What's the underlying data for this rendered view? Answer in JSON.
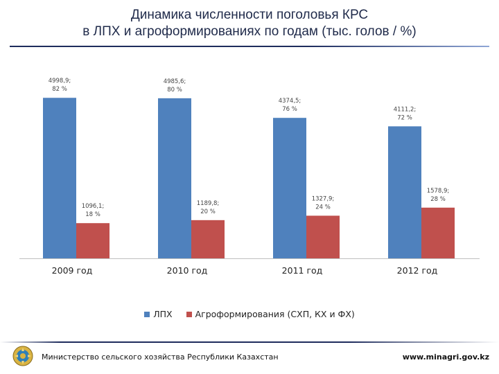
{
  "header": {
    "title_line1": "Динамика численности поголовья КРС",
    "title_line2": "в ЛПХ и агроформированиях по годам (тыс. голов / %)"
  },
  "chart_data": {
    "type": "bar",
    "categories": [
      "2009 год",
      "2010 год",
      "2011 год",
      "2012 год"
    ],
    "ylim": [
      0,
      5500
    ],
    "series": [
      {
        "name": "ЛПХ",
        "color": "#4f81bd",
        "values": [
          4998.9,
          4985.6,
          4374.5,
          4111.2
        ],
        "labels": [
          [
            "4998,9;",
            "82 %"
          ],
          [
            "4985,6;",
            "80 %"
          ],
          [
            "4374,5;",
            "76 %"
          ],
          [
            "4111,2;",
            "72 %"
          ]
        ]
      },
      {
        "name": "Агроформирования (СХП, КХ и ФХ)",
        "color": "#c0504d",
        "values": [
          1096.1,
          1189.8,
          1327.9,
          1578.9
        ],
        "labels": [
          [
            "1096,1;",
            "18 %"
          ],
          [
            "1189,8;",
            "20 %"
          ],
          [
            "1327,9;",
            "24 %"
          ],
          [
            "1578,9;",
            "28 %"
          ]
        ]
      }
    ],
    "legend_position": "bottom",
    "grid": false
  },
  "footer": {
    "ministry": "Министерство сельского хозяйства Республики Казахстан",
    "website": "www.minagri.gov.kz"
  }
}
